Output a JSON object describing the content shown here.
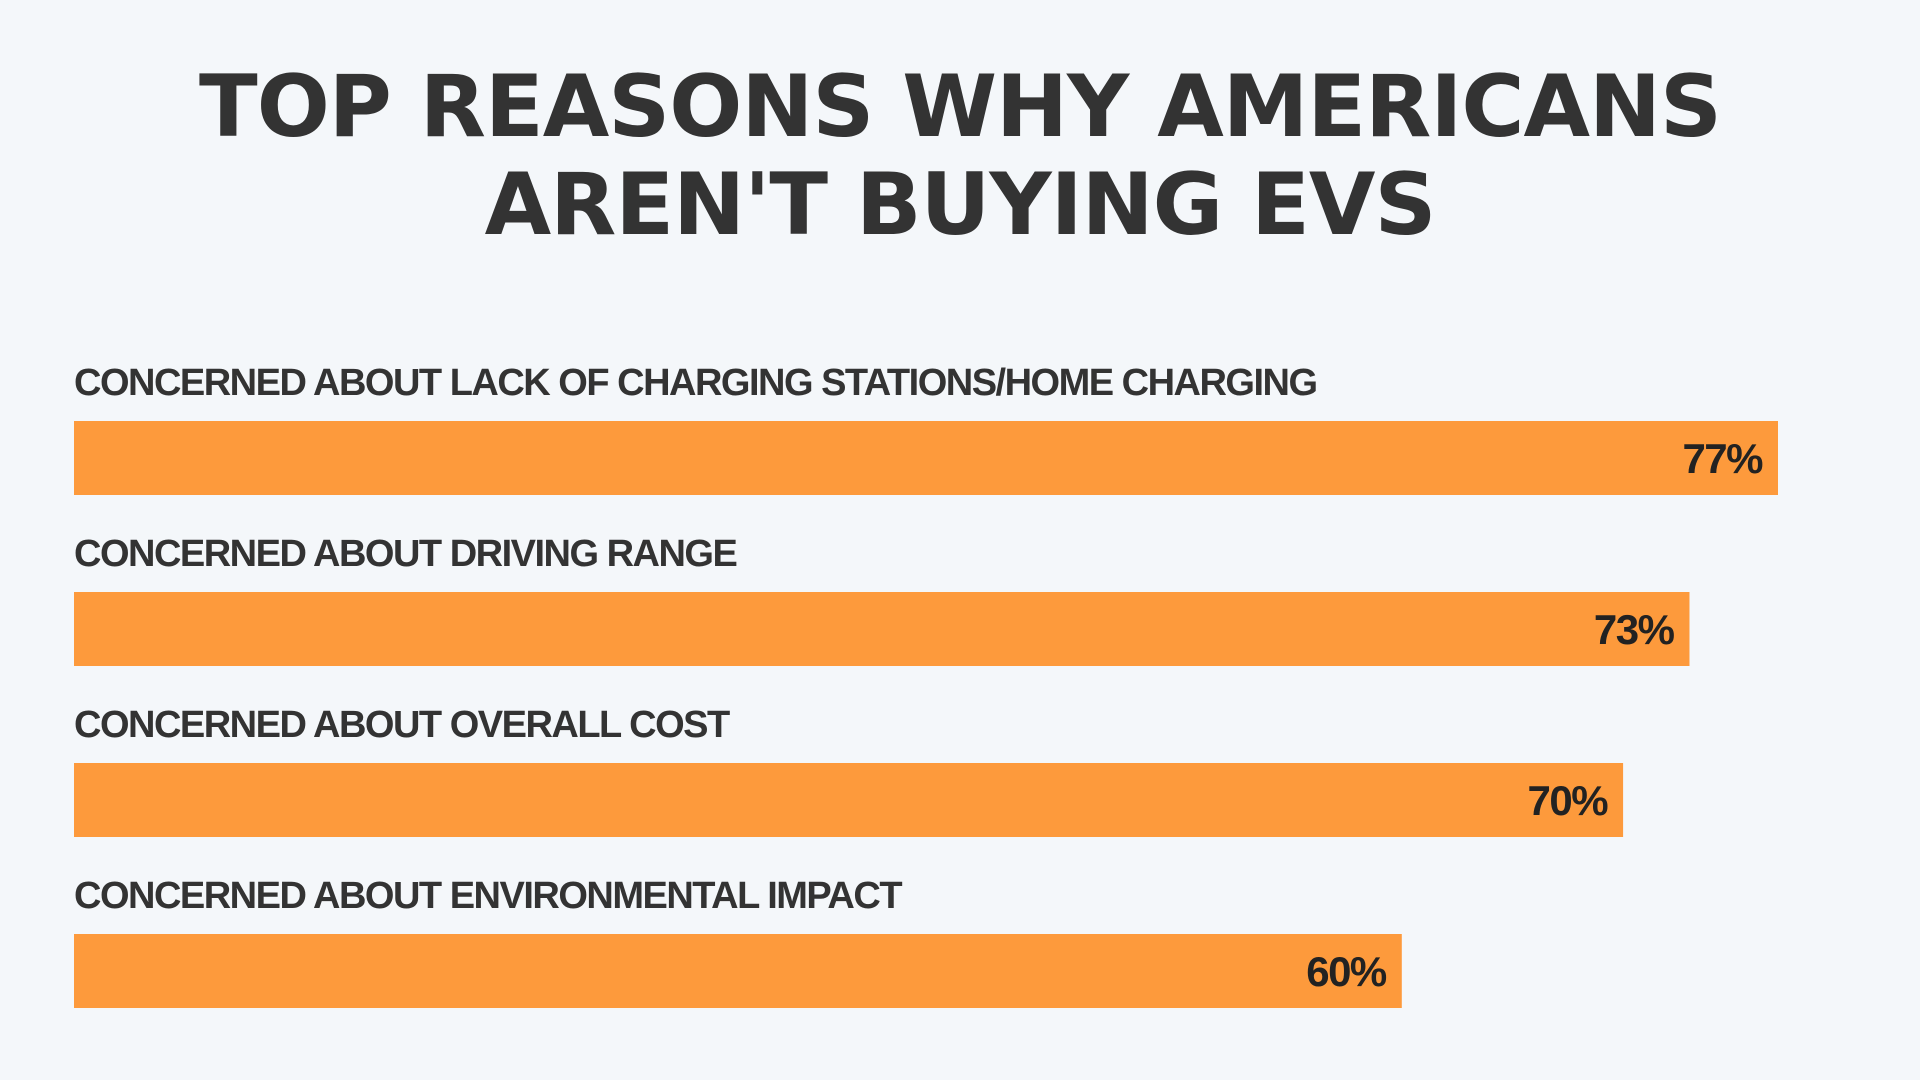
{
  "chart_data": {
    "type": "bar",
    "orientation": "horizontal",
    "title_lines": [
      "TOP REASONS WHY AMERICANS",
      "AREN'T BUYING EVS"
    ],
    "categories": [
      "CONCERNED ABOUT LACK OF CHARGING STATIONS/HOME CHARGING",
      "CONCERNED ABOUT DRIVING RANGE",
      "CONCERNED ABOUT OVERALL COST",
      "CONCERNED ABOUT ENVIRONMENTAL IMPACT"
    ],
    "values": [
      77,
      73,
      70,
      60
    ],
    "value_labels": [
      "77%",
      "73%",
      "70%",
      "60%"
    ],
    "unit": "%",
    "bar_color": "#fd9a3c",
    "grid": false,
    "legend": "none"
  }
}
